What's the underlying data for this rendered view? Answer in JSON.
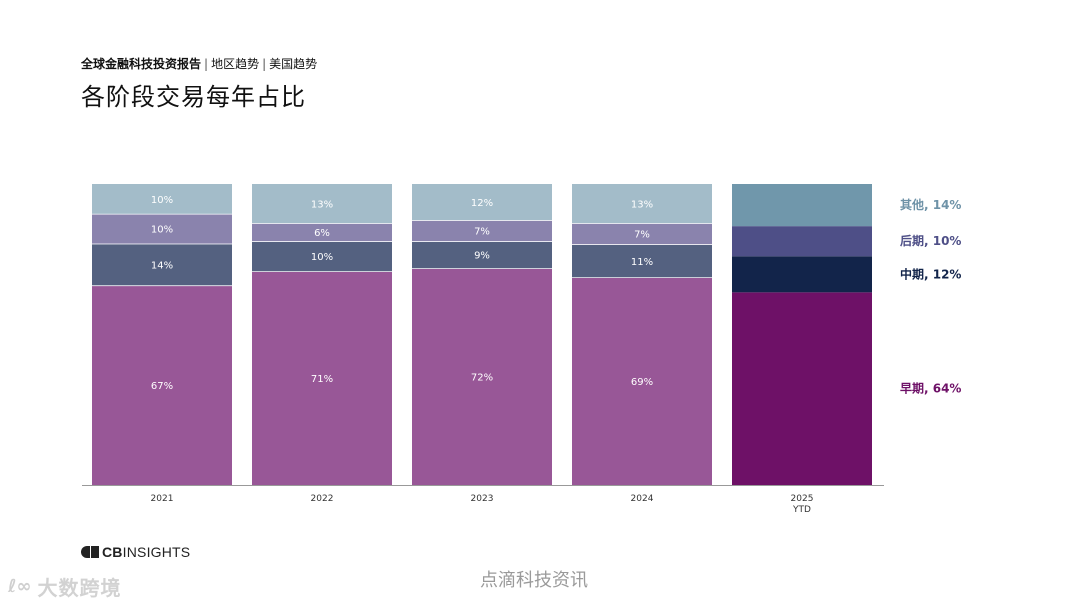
{
  "header": {
    "breadcrumb_main": "全球金融科技投资报告",
    "breadcrumb_sep1": "|",
    "breadcrumb_region": "地区趋势",
    "breadcrumb_sep2": "|",
    "breadcrumb_country": "美国趋势",
    "title": "各阶段交易每年占比"
  },
  "chart_data": {
    "type": "bar",
    "stacked": true,
    "percent": true,
    "categories": [
      "2021",
      "2022",
      "2023",
      "2024",
      "2025\nYTD"
    ],
    "series": [
      {
        "key": "early",
        "values": [
          67,
          71,
          72,
          69,
          64
        ],
        "color": "#985797",
        "highlight_color": "#6e1167"
      },
      {
        "key": "mid",
        "values": [
          14,
          10,
          9,
          11,
          12
        ],
        "color": "#546180",
        "highlight_color": "#12244a"
      },
      {
        "key": "late",
        "values": [
          10,
          6,
          7,
          7,
          10
        ],
        "color": "#8a83ad",
        "highlight_color": "#4e4f87"
      },
      {
        "key": "other",
        "values": [
          10,
          13,
          12,
          13,
          14
        ],
        "color": "#a3bcc9",
        "highlight_color": "#7097ab"
      }
    ],
    "legend": [
      {
        "label": "其他, 14%",
        "color": "#6e92a7"
      },
      {
        "label": "后期, 10%",
        "color": "#4e4f87"
      },
      {
        "label": "中期, 12%",
        "color": "#12244a"
      },
      {
        "label": "早期, 64%",
        "color": "#6e1167"
      }
    ],
    "data_labels_shown": [
      true,
      true,
      true,
      true,
      false
    ],
    "legend_position": "right",
    "grid": false,
    "ylim": [
      0,
      100
    ]
  },
  "footer": {
    "logo_bold": "CB",
    "logo_light": "INSIGHTS",
    "watermark_left": "大数跨境",
    "watermark_left_icon": "ℓ∞",
    "watermark_center": "点滴科技资讯"
  }
}
